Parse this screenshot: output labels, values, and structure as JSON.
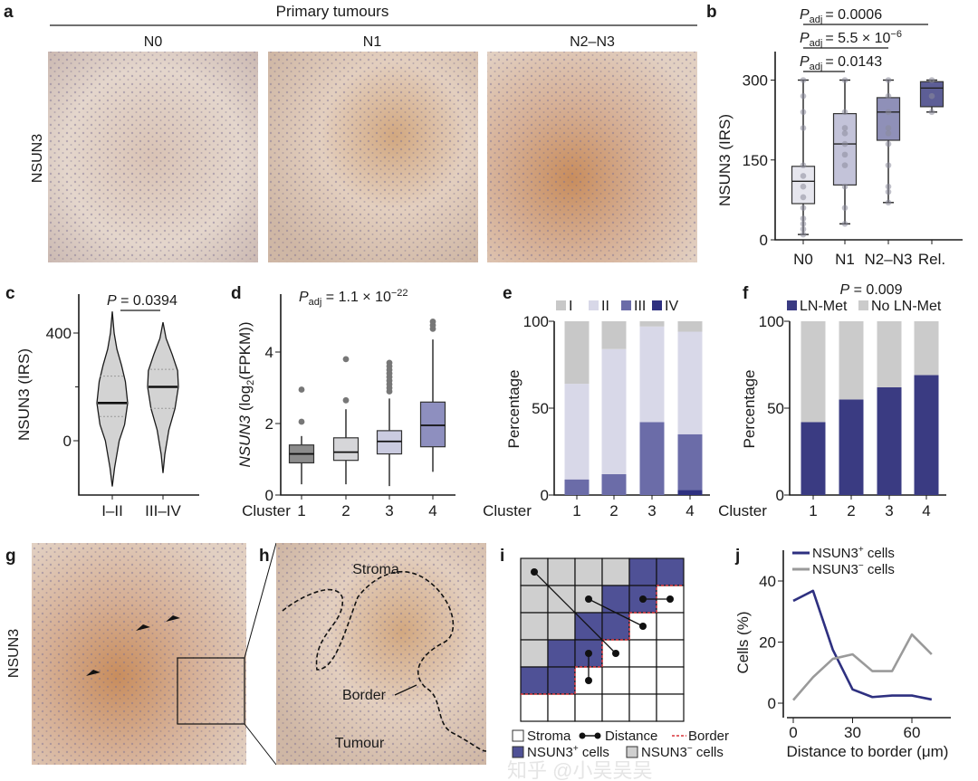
{
  "panel_labels": {
    "a": "a",
    "b": "b",
    "c": "c",
    "d": "d",
    "e": "e",
    "f": "f",
    "g": "g",
    "h": "h",
    "i": "i",
    "j": "j"
  },
  "panel_a": {
    "title": "Primary tumours",
    "row_label": "NSUN3",
    "columns": [
      "N0",
      "N1",
      "N2–N3"
    ]
  },
  "panel_g": {
    "row_label": "NSUN3"
  },
  "panel_h": {
    "labels": {
      "stroma": "Stroma",
      "border": "Border",
      "tumour": "Tumour"
    }
  },
  "panel_i": {
    "grid": [
      "GGGGBB",
      "GGGBBW",
      "GGBBWW",
      "GBBWWW",
      "BBWWWW",
      "WWWWWW"
    ],
    "legend": {
      "stroma": "Stroma",
      "distance": "Distance",
      "border": "Border",
      "pos": "NSUN3",
      "pos_sup": "+",
      "pos_suffix": " cells",
      "neg": "NSUN3",
      "neg_sup": "−",
      "neg_suffix": " cells"
    },
    "colors": {
      "pos": "#4f5196",
      "neg": "#cfcfcf",
      "stroma": "#ffffff",
      "border": "#d9343a"
    }
  },
  "watermark": "知乎 @小吴吴吴",
  "chart_data": [
    {
      "panel": "b",
      "type": "box",
      "categories": [
        "N0",
        "N1",
        "N2–N3",
        "Rel."
      ],
      "ylabel": "NSUN3 (IRS)",
      "ylim": [
        0,
        340
      ],
      "yticks": [
        "0",
        "150",
        "300"
      ],
      "boxes": [
        {
          "min": 10,
          "q1": 68,
          "median": 110,
          "q3": 138,
          "max": 300,
          "color": "#e6e6ee",
          "points": [
            300,
            270,
            240,
            210,
            140,
            120,
            100,
            80,
            60,
            40,
            30,
            20,
            10
          ]
        },
        {
          "min": 30,
          "q1": 103,
          "median": 180,
          "q3": 237,
          "max": 300,
          "color": "#c3c3d9",
          "points": [
            300,
            240,
            210,
            200,
            180,
            160,
            140,
            100,
            60,
            30
          ]
        },
        {
          "min": 70,
          "q1": 187,
          "median": 240,
          "q3": 267,
          "max": 300,
          "color": "#8f90b8",
          "points": [
            300,
            270,
            240,
            210,
            200,
            180,
            140,
            100,
            90,
            70
          ]
        },
        {
          "min": 240,
          "q1": 250,
          "median": 285,
          "q3": 297,
          "max": 300,
          "color": "#5d5e96",
          "points": [
            300,
            270,
            240
          ]
        }
      ],
      "comparisons": [
        {
          "from": 0,
          "to": 3,
          "p_prefix": "P",
          "p_sub": "adj",
          "p_value": "= 0.0006",
          "p_sup": ""
        },
        {
          "from": 0,
          "to": 2,
          "p_prefix": "P",
          "p_sub": "adj",
          "p_value": "= 5.5 × 10",
          "p_sup": "−6"
        },
        {
          "from": 0,
          "to": 1,
          "p_prefix": "P",
          "p_sub": "adj",
          "p_value": "= 0.0143",
          "p_sup": ""
        }
      ]
    },
    {
      "panel": "c",
      "type": "violin",
      "categories": [
        "I–II",
        "III–IV"
      ],
      "ylabel": "NSUN3 (IRS)",
      "yticks": [
        "0",
        "400"
      ],
      "ylim": [
        -190,
        580
      ],
      "violins": [
        {
          "median": 140,
          "quartiles": [
            90,
            240
          ],
          "density": [
            [
              -170,
              0
            ],
            [
              -100,
              0.15
            ],
            [
              0,
              0.45
            ],
            [
              60,
              0.8
            ],
            [
              140,
              1
            ],
            [
              220,
              0.85
            ],
            [
              280,
              0.6
            ],
            [
              340,
              0.3
            ],
            [
              400,
              0.12
            ],
            [
              480,
              0
            ]
          ]
        },
        {
          "median": 200,
          "quartiles": [
            120,
            265
          ],
          "density": [
            [
              -120,
              0
            ],
            [
              -50,
              0.12
            ],
            [
              40,
              0.38
            ],
            [
              120,
              0.78
            ],
            [
              200,
              1
            ],
            [
              260,
              0.95
            ],
            [
              320,
              0.6
            ],
            [
              380,
              0.2
            ],
            [
              440,
              0
            ]
          ]
        }
      ],
      "comparison": {
        "p_prefix": "P",
        "p_value": " = 0.0394"
      }
    },
    {
      "panel": "d",
      "type": "box",
      "xlabel": "Cluster",
      "categories": [
        "1",
        "2",
        "3",
        "4"
      ],
      "ylabel_gene": "NSUN3",
      "ylabel_rest": " (log",
      "ylabel_sub": "2",
      "ylabel_end": "(FPKM))",
      "ylim": [
        0,
        5.2
      ],
      "yticks": [
        "0",
        "2",
        "4"
      ],
      "title_prefix": "P",
      "title_sub": "adj",
      "title_value": " = 1.1 × 10",
      "title_sup": "−22",
      "boxes": [
        {
          "min": 0.3,
          "q1": 0.9,
          "median": 1.15,
          "q3": 1.4,
          "max": 1.65,
          "color": "#8c8c8c",
          "outliers": [
            2.05,
            2.95
          ]
        },
        {
          "min": 0.3,
          "q1": 0.97,
          "median": 1.2,
          "q3": 1.6,
          "max": 2.4,
          "color": "#d6d6d9",
          "outliers": [
            2.65,
            3.8
          ]
        },
        {
          "min": 0.25,
          "q1": 1.15,
          "median": 1.5,
          "q3": 1.8,
          "max": 2.7,
          "color": "#cacbe0",
          "outliers": [
            2.9,
            3.0,
            3.1,
            3.2,
            3.3,
            3.4,
            3.5,
            3.6,
            3.7
          ]
        },
        {
          "min": 0.65,
          "q1": 1.35,
          "median": 1.95,
          "q3": 2.6,
          "max": 4.35,
          "color": "#8e8fbf",
          "outliers": [
            4.65,
            4.75,
            4.85
          ]
        }
      ]
    },
    {
      "panel": "e",
      "type": "stacked-bar",
      "xlabel": "Cluster",
      "categories": [
        "1",
        "2",
        "3",
        "4"
      ],
      "ylabel": "Percentage",
      "ylim": [
        0,
        100
      ],
      "yticks": [
        "0",
        "50",
        "100"
      ],
      "legend": "top",
      "series": [
        {
          "name": "IV",
          "color": "#2e3080",
          "values": [
            0,
            0,
            0,
            3
          ]
        },
        {
          "name": "III",
          "color": "#6b6ca8",
          "values": [
            9,
            12,
            42,
            32
          ]
        },
        {
          "name": "II",
          "color": "#d8d8e8",
          "values": [
            55,
            72,
            55,
            59
          ]
        },
        {
          "name": "I",
          "color": "#c8c8c8",
          "values": [
            36,
            16,
            3,
            6
          ]
        }
      ]
    },
    {
      "panel": "f",
      "type": "stacked-bar",
      "xlabel": "Cluster",
      "categories": [
        "1",
        "2",
        "3",
        "4"
      ],
      "ylabel": "Percentage",
      "ylim": [
        0,
        100
      ],
      "yticks": [
        "0",
        "50",
        "100"
      ],
      "legend": "top",
      "title_prefix": "P",
      "title_value": " = 0.009",
      "series": [
        {
          "name": "LN-Met",
          "color": "#3a3b82",
          "values": [
            42,
            55,
            62,
            69
          ]
        },
        {
          "name": "No LN-Met",
          "color": "#cbcbcb",
          "values": [
            58,
            45,
            38,
            31
          ]
        }
      ]
    },
    {
      "panel": "j",
      "type": "line",
      "xlabel": "Distance to border (μm)",
      "ylabel": "Cells (%)",
      "xlim": [
        0,
        75
      ],
      "ylim": [
        -5,
        50
      ],
      "xticks": [
        "0",
        "30",
        "60"
      ],
      "yticks": [
        "0",
        "20",
        "40"
      ],
      "x": [
        0,
        10,
        20,
        30,
        40,
        50,
        60,
        70
      ],
      "series": [
        {
          "name": "NSUN3",
          "sup": "+",
          "suffix": " cells",
          "color": "#2e3080",
          "values": [
            33.5,
            36.8,
            17.5,
            4.5,
            2,
            2.5,
            2.5,
            1.2
          ]
        },
        {
          "name": "NSUN3",
          "sup": "−",
          "suffix": " cells",
          "color": "#9a9a9a",
          "values": [
            1,
            8.5,
            14.5,
            16,
            10.5,
            10.5,
            22.5,
            16
          ]
        }
      ]
    }
  ]
}
